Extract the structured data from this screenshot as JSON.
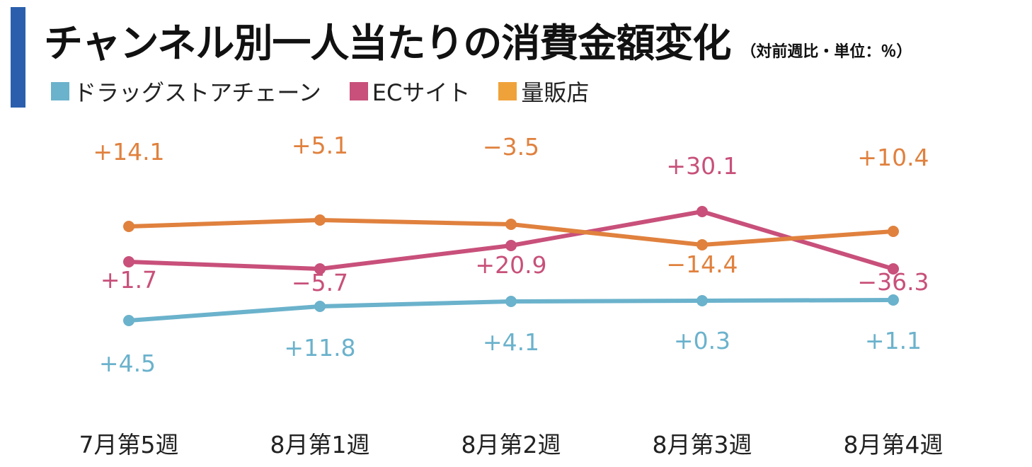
{
  "header": {
    "title": "チャンネル別一人当たりの消費金額変化",
    "subtitle": "（対前週比・単位：％）",
    "accent_color": "#2b5fad"
  },
  "chart_data": {
    "type": "line",
    "title": "チャンネル別一人当たりの消費金額変化",
    "subtitle": "（対前週比・単位：％）",
    "categories": [
      "7月第5週",
      "8月第1週",
      "8月第2週",
      "8月第3週",
      "8月第4週"
    ],
    "series": [
      {
        "name": "ドラッグストアチェーン",
        "legend_color": "#6bb2cc",
        "line_color": "#6bb2cc",
        "label_color": "#6bb2cc",
        "labels": [
          "+4.5",
          "+11.8",
          "+4.1",
          "+0.3",
          "+1.1"
        ],
        "values": [
          4.5,
          11.8,
          4.1,
          0.3,
          1.1
        ],
        "label_position": "below"
      },
      {
        "name": "ECサイト",
        "legend_color": "#c8507a",
        "line_color": "#c8507a",
        "label_color": "#c8507a",
        "labels": [
          "+1.7",
          "−5.7",
          "+20.9",
          "+30.1",
          "−36.3"
        ],
        "values": [
          1.7,
          -5.7,
          20.9,
          30.1,
          -36.3
        ],
        "label_position": "mixed"
      },
      {
        "name": "量販店",
        "legend_color": "#f0a23a",
        "line_color": "#e0813e",
        "label_color": "#e0813e",
        "labels": [
          "+14.1",
          "+5.1",
          "−3.5",
          "−14.4",
          "+10.4"
        ],
        "values": [
          14.1,
          5.1,
          -3.5,
          -14.4,
          10.4
        ],
        "label_position": "mixed"
      }
    ],
    "y_axis_shown": false,
    "grid": false,
    "legend_position": "top-left"
  }
}
